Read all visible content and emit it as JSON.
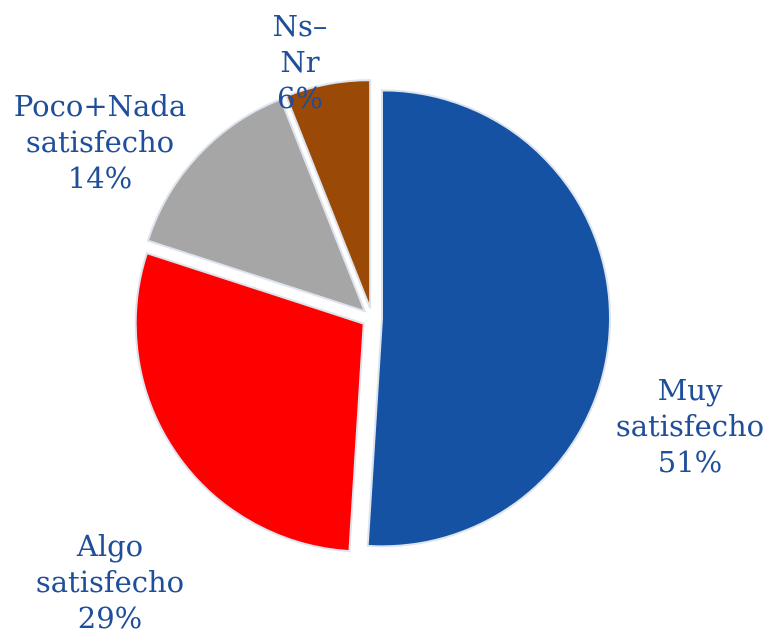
{
  "chart_data": {
    "type": "pie",
    "categories": [
      "Muy satisfecho",
      "Algo satisfecho",
      "Poco+Nada satisfecho",
      "Ns–Nr"
    ],
    "values": [
      51,
      29,
      14,
      6
    ],
    "value_labels": [
      "51%",
      "29%",
      "14%",
      "6%"
    ],
    "colors": [
      "#1552a3",
      "#ff0000",
      "#a6a6a6",
      "#9a4a06"
    ]
  }
}
